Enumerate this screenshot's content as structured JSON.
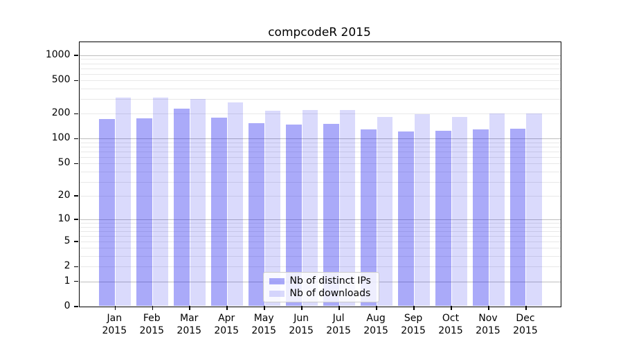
{
  "chart_data": {
    "type": "bar",
    "title": "compcodeR 2015",
    "year": "2015",
    "categories": [
      "Jan",
      "Feb",
      "Mar",
      "Apr",
      "May",
      "Jun",
      "Jul",
      "Aug",
      "Sep",
      "Oct",
      "Nov",
      "Dec"
    ],
    "series": [
      {
        "name": "Nb of distinct IPs",
        "values": [
          174,
          175,
          230,
          179,
          155,
          148,
          151,
          130,
          122,
          124,
          130,
          132
        ],
        "color": "#1414ee",
        "alpha": 0.36
      },
      {
        "name": "Nb of downloads",
        "values": [
          314,
          310,
          302,
          273,
          216,
          223,
          220,
          184,
          196,
          184,
          200,
          202
        ],
        "color": "#1414ee",
        "alpha": 0.155
      }
    ],
    "yscale": "log10(x+1)",
    "yticks": [
      0,
      1,
      2,
      5,
      10,
      20,
      50,
      100,
      200,
      500,
      1000
    ],
    "ylim": [
      0,
      1490
    ],
    "grid": {
      "major_color": "#bdbdbd",
      "minor_color": "#e8e8e8",
      "minor_at": "2-9 per decade"
    },
    "legend_position": "bottom-center-inside",
    "xlabel": "",
    "ylabel": ""
  }
}
